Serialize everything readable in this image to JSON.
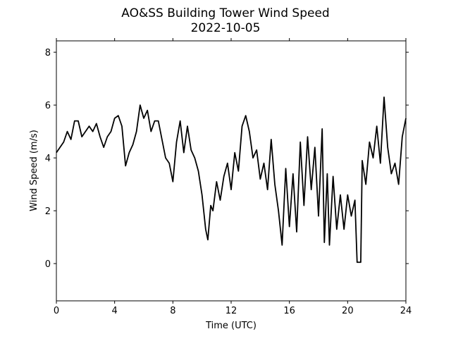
{
  "chart_data": {
    "type": "line",
    "title": "AO&SS Building Tower Wind Speed",
    "subtitle": "2022-10-05",
    "x_label": "Time (UTC)",
    "y_label": "Wind Speed (m/s)",
    "x": [
      0,
      0.25,
      0.5,
      0.75,
      1,
      1.25,
      1.5,
      1.75,
      2,
      2.25,
      2.5,
      2.75,
      3,
      3.25,
      3.5,
      3.75,
      4,
      4.25,
      4.5,
      4.75,
      5,
      5.25,
      5.5,
      5.75,
      6,
      6.25,
      6.5,
      6.75,
      7,
      7.25,
      7.5,
      7.75,
      8,
      8.25,
      8.5,
      8.75,
      9,
      9.25,
      9.5,
      9.75,
      10,
      10.25,
      10.4,
      10.6,
      10.75,
      11,
      11.25,
      11.5,
      11.75,
      12,
      12.25,
      12.5,
      12.75,
      13,
      13.25,
      13.5,
      13.75,
      14,
      14.25,
      14.5,
      14.75,
      15,
      15.25,
      15.5,
      15.75,
      16,
      16.25,
      16.5,
      16.75,
      17,
      17.25,
      17.5,
      17.75,
      18,
      18.25,
      18.4,
      18.6,
      18.75,
      19,
      19.25,
      19.5,
      19.75,
      20,
      20.25,
      20.5,
      20.65,
      20.9,
      21,
      21.25,
      21.5,
      21.75,
      22,
      22.25,
      22.5,
      22.75,
      23,
      23.25,
      23.5,
      23.75,
      24
    ],
    "series": [
      {
        "name": "Wind Speed",
        "color": "#000000",
        "values": [
          4.2,
          4.4,
          4.6,
          5.0,
          4.7,
          5.4,
          5.4,
          4.8,
          5.0,
          5.2,
          5.0,
          5.3,
          4.8,
          4.4,
          4.8,
          5.0,
          5.5,
          5.6,
          5.2,
          3.7,
          4.2,
          4.5,
          5.0,
          6.0,
          5.5,
          5.8,
          5.0,
          5.4,
          5.4,
          4.7,
          4.0,
          3.8,
          3.1,
          4.6,
          5.4,
          4.2,
          5.2,
          4.3,
          4.0,
          3.5,
          2.6,
          1.3,
          0.9,
          2.2,
          2.0,
          3.1,
          2.4,
          3.3,
          3.8,
          2.8,
          4.2,
          3.5,
          5.2,
          5.6,
          5.0,
          4.0,
          4.3,
          3.2,
          3.8,
          2.8,
          4.7,
          3.0,
          2.0,
          0.7,
          3.6,
          1.4,
          3.4,
          1.2,
          4.6,
          2.2,
          4.8,
          2.8,
          4.4,
          1.8,
          5.1,
          0.8,
          3.4,
          0.7,
          3.3,
          1.3,
          2.6,
          1.3,
          2.6,
          1.8,
          2.4,
          0.05,
          0.05,
          3.9,
          3.0,
          4.6,
          4.0,
          5.2,
          3.8,
          6.3,
          4.4,
          3.4,
          3.8,
          3.0,
          4.8,
          5.5
        ]
      }
    ],
    "xlim": [
      0,
      24
    ],
    "xticks": [
      0,
      4,
      8,
      12,
      16,
      20,
      24
    ],
    "ylim": [
      -1.41,
      8.43
    ],
    "yticks": [
      0,
      2,
      4,
      6,
      8
    ],
    "grid": false
  }
}
